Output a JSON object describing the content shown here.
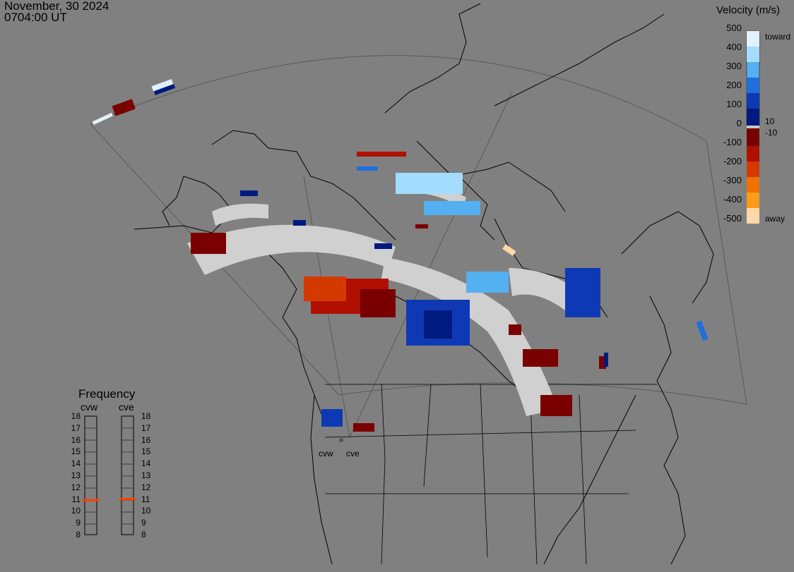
{
  "header": {
    "date": "November, 30 2024",
    "time": "0704:00 UT"
  },
  "colorbar": {
    "title": "Velocity (m/s)",
    "ticks": [
      "500",
      "400",
      "300",
      "200",
      "100",
      "0",
      "-100",
      "-200",
      "-300",
      "-400",
      "-500"
    ],
    "labels": {
      "toward": "toward",
      "away": "away",
      "pos_min": "10",
      "neg_min": "-10"
    },
    "colors": {
      "toward": [
        "#dff2ff",
        "#a4dcff",
        "#54b0f0",
        "#1f6fdc",
        "#0d3ab4",
        "#001a80"
      ],
      "away": [
        "#7a0000",
        "#b01000",
        "#d23a00",
        "#f07000",
        "#ff9a1a",
        "#ffd7a8"
      ],
      "zero_band": "#c8c8c8"
    }
  },
  "frequency": {
    "title": "Frequency",
    "radars": [
      "cvw",
      "cve"
    ],
    "mhz_labels": [
      "18",
      "17",
      "16",
      "15",
      "14",
      "13",
      "12",
      "11",
      "10",
      "9",
      "8"
    ],
    "cvw_mhz": 10.9,
    "cve_mhz": 11.0,
    "marker_color": "#ff4000"
  },
  "radar_sites": {
    "cvw": "cvw",
    "cve": "cve"
  }
}
